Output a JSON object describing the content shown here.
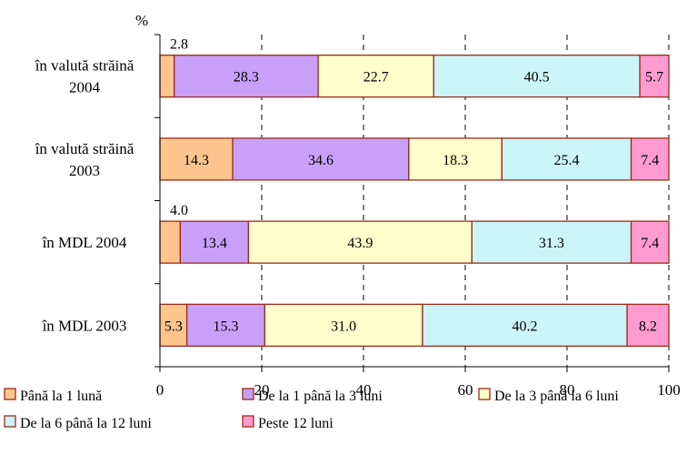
{
  "chart_data": {
    "type": "bar",
    "orientation": "horizontal",
    "stacked": true,
    "title": "",
    "unit_label": "%",
    "xlabel": "",
    "ylabel": "",
    "xlim": [
      0,
      100
    ],
    "x_ticks": [
      "0",
      "20",
      "40",
      "60",
      "80",
      "100"
    ],
    "grid": "vertical dashed",
    "legend_position": "bottom",
    "categories": [
      [
        "în valută străină",
        "2004"
      ],
      [
        "în valută străină",
        "2003"
      ],
      [
        "în MDL 2004"
      ],
      [
        "în MDL 2003"
      ]
    ],
    "series": [
      {
        "name": "Până la 1 lună",
        "color": "#fbc58d",
        "values": [
          2.8,
          14.3,
          4.0,
          5.3
        ],
        "labels": [
          "2.8",
          "14.3",
          "4.0",
          "5.3"
        ]
      },
      {
        "name": "De la 1 până la 3 luni",
        "color": "#c8a0fa",
        "values": [
          28.3,
          34.6,
          13.4,
          15.3
        ],
        "labels": [
          "28.3",
          "34.6",
          "13.4",
          "15.3"
        ]
      },
      {
        "name": "De la 3 până la 6 luni",
        "color": "#ffffcc",
        "values": [
          22.7,
          18.3,
          43.9,
          31.0
        ],
        "labels": [
          "22.7",
          "18.3",
          "43.9",
          "31.0"
        ]
      },
      {
        "name": "De la 6 până la 12 luni",
        "color": "#ccf5f9",
        "values": [
          40.5,
          25.4,
          31.3,
          40.2
        ],
        "labels": [
          "40.5",
          "25.4",
          "31.3",
          "40.2"
        ]
      },
      {
        "name": "Peste 12 luni",
        "color": "#ff9bd0",
        "values": [
          5.7,
          7.4,
          7.4,
          8.2
        ],
        "labels": [
          "5.7",
          "7.4",
          "7.4",
          "8.2"
        ]
      }
    ],
    "outside_labels": [
      0,
      2
    ],
    "bar_border_color": "#9b2a1a"
  }
}
